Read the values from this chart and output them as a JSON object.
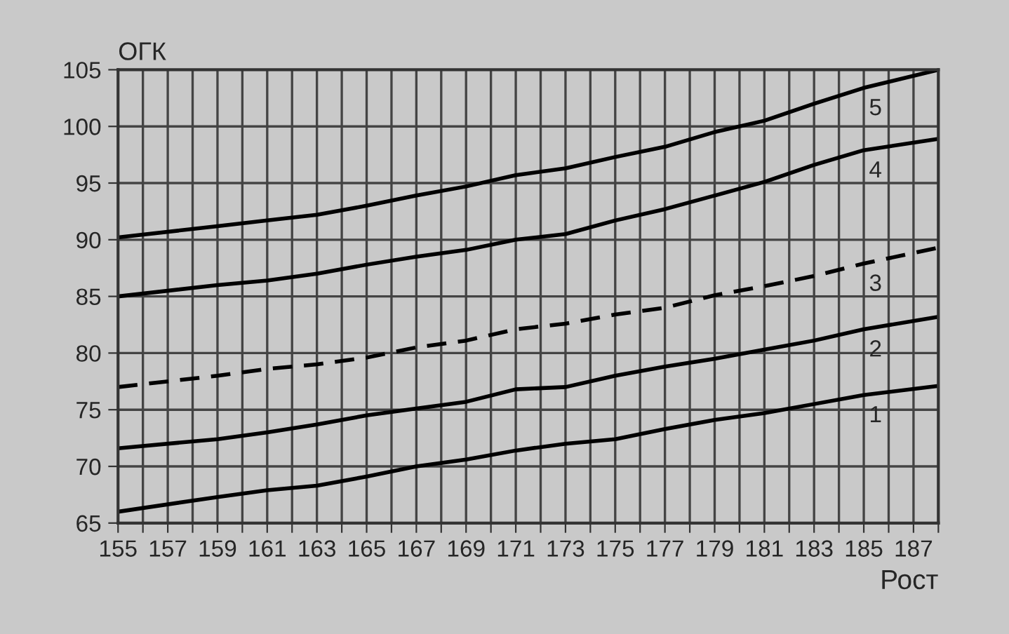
{
  "chart_data": {
    "type": "line",
    "xlabel": "Рост",
    "ylabel": "ОГК",
    "x": [
      155,
      159,
      161,
      163,
      165,
      167,
      169,
      171,
      173,
      175,
      177,
      179,
      181,
      183,
      185,
      188
    ],
    "series": [
      {
        "name": "1",
        "color": "#000000",
        "values": [
          66,
          67.3,
          67.9,
          68.3,
          69.1,
          70,
          70.6,
          71.4,
          72,
          72.4,
          73.3,
          74.1,
          74.7,
          75.5,
          76.3,
          77.1
        ]
      },
      {
        "name": "2",
        "color": "#000000",
        "values": [
          71.6,
          72.4,
          73,
          73.7,
          74.5,
          75.1,
          75.7,
          76.8,
          77,
          78,
          78.8,
          79.5,
          80.3,
          81.1,
          82.1,
          83.2
        ]
      },
      {
        "name": "3",
        "color": "#000000",
        "line_style": "dashed",
        "values": [
          77,
          78,
          78.6,
          79,
          79.6,
          80.5,
          81.1,
          82.1,
          82.6,
          83.4,
          84,
          85.1,
          85.9,
          86.8,
          87.9,
          89.3
        ]
      },
      {
        "name": "4",
        "color": "#000000",
        "values": [
          85,
          86,
          86.4,
          87,
          87.8,
          88.5,
          89.1,
          90,
          90.5,
          91.7,
          92.7,
          93.9,
          95.1,
          96.6,
          97.9,
          98.9
        ]
      },
      {
        "name": "5",
        "color": "#000000",
        "values": [
          90.2,
          91.2,
          91.7,
          92.2,
          93,
          93.9,
          94.7,
          95.7,
          96.3,
          97.3,
          98.2,
          99.5,
          100.5,
          102,
          103.4,
          105
        ]
      }
    ],
    "xlim": [
      155,
      188
    ],
    "ylim": [
      65,
      105
    ],
    "xticks": [
      155,
      {
        "value": 156,
        "label": null
      },
      157,
      {
        "value": 158,
        "label": null
      },
      159,
      {
        "value": 160,
        "label": null
      },
      161,
      {
        "value": 162,
        "label": null
      },
      163,
      {
        "value": 164,
        "label": null
      },
      165,
      {
        "value": 166,
        "label": null
      },
      167,
      {
        "value": 168,
        "label": null
      },
      169,
      {
        "value": 170,
        "label": null
      },
      171,
      {
        "value": 172,
        "label": null
      },
      173,
      {
        "value": 174,
        "label": null
      },
      175,
      {
        "value": 176,
        "label": null
      },
      177,
      {
        "value": 178,
        "label": null
      },
      179,
      {
        "value": 180,
        "label": null
      },
      181,
      {
        "value": 182,
        "label": null
      },
      183,
      {
        "value": 184,
        "label": null
      },
      185,
      {
        "value": 186,
        "label": null
      },
      187,
      {
        "value": 188,
        "label": null
      }
    ],
    "yticks": [
      65,
      70,
      75,
      80,
      85,
      90,
      95,
      100,
      105
    ],
    "grid": true,
    "legend": false,
    "line_style": "solid",
    "marker": "none"
  }
}
